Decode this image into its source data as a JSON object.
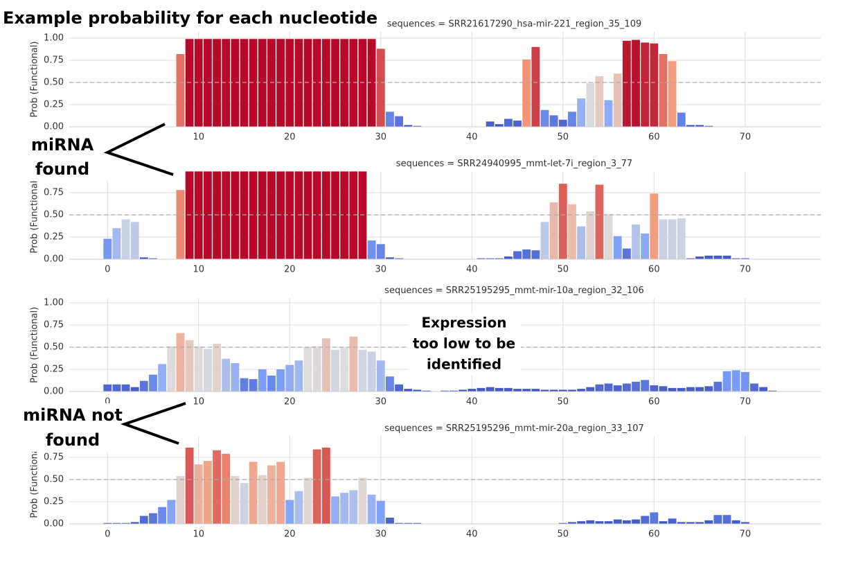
{
  "figure": {
    "title": "Example probability for each nucleotide",
    "annotations": [
      {
        "lines": [
          "miRNA",
          "found"
        ]
      },
      {
        "lines": [
          "Expression",
          "too low to be",
          "identified"
        ]
      },
      {
        "lines": [
          "miRNA not",
          "found"
        ]
      }
    ]
  },
  "chart_data": [
    {
      "type": "bar",
      "title": "sequences = SRR21617290_hsa-mir-221_region_35_109",
      "ylabel": "Prob (Functional)",
      "colormap": "coolwarm",
      "threshold": 0.5,
      "grid": true,
      "xlim": [
        -4.2,
        78.3
      ],
      "xticks": [
        10,
        20,
        30,
        40,
        50,
        60,
        70
      ],
      "ylim": [
        0,
        1.07
      ],
      "yticks": [
        {
          "value": 0,
          "label": "0.00"
        },
        {
          "value": 0.25,
          "label": "0.25"
        },
        {
          "value": 0.5,
          "label": "0.50"
        },
        {
          "value": 0.75,
          "label": "0.75"
        },
        {
          "value": 1,
          "label": "1.00"
        }
      ],
      "x": [
        0,
        1,
        2,
        3,
        4,
        5,
        6,
        7,
        8,
        9,
        10,
        11,
        12,
        13,
        14,
        15,
        16,
        17,
        18,
        19,
        20,
        21,
        22,
        23,
        24,
        25,
        26,
        27,
        28,
        29,
        30,
        31,
        32,
        33,
        34,
        35,
        36,
        37,
        38,
        39,
        40,
        41,
        42,
        43,
        44,
        45,
        46,
        47,
        48,
        49,
        50,
        51,
        52,
        53,
        54,
        55,
        56,
        57,
        58,
        59,
        60,
        61,
        62,
        63,
        64,
        65,
        66,
        67,
        68,
        69,
        70,
        71,
        72,
        73,
        74
      ],
      "values": [
        0,
        0,
        0,
        0,
        0,
        0,
        0,
        0,
        0.82,
        0.99,
        0.99,
        0.99,
        0.99,
        0.99,
        0.99,
        0.99,
        0.99,
        0.99,
        0.99,
        0.99,
        0.99,
        0.99,
        0.99,
        0.99,
        0.99,
        0.99,
        0.99,
        0.99,
        0.99,
        0.99,
        0.88,
        0.17,
        0.12,
        0.02,
        0.01,
        0,
        0,
        0,
        0,
        0,
        0,
        0,
        0.06,
        0.03,
        0.09,
        0.07,
        0.76,
        0.9,
        0.19,
        0.13,
        0.08,
        0.17,
        0.32,
        0.49,
        0.57,
        0.3,
        0.6,
        0.97,
        0.98,
        0.95,
        0.94,
        0.82,
        0.74,
        0.16,
        0.02,
        0.02,
        0.01,
        0,
        0,
        0,
        0,
        0,
        0,
        0,
        0
      ]
    },
    {
      "type": "bar",
      "title": "sequences = SRR24940995_mmt-let-7i_region_3_77",
      "ylabel": "Prob (Functional)",
      "colormap": "coolwarm",
      "threshold": 0.5,
      "grid": true,
      "xlim": [
        -4.2,
        78.3
      ],
      "xticks": [
        0,
        10,
        20,
        30,
        40,
        50,
        60,
        70
      ],
      "ylim": [
        0,
        0.99
      ],
      "yticks": [
        {
          "value": 0,
          "label": "0.00"
        },
        {
          "value": 0.25,
          "label": "0.25"
        },
        {
          "value": 0.5,
          "label": "0.50"
        },
        {
          "value": 0.75,
          "label": "0.75"
        }
      ],
      "x": [
        0,
        1,
        2,
        3,
        4,
        5,
        6,
        7,
        8,
        9,
        10,
        11,
        12,
        13,
        14,
        15,
        16,
        17,
        18,
        19,
        20,
        21,
        22,
        23,
        24,
        25,
        26,
        27,
        28,
        29,
        30,
        31,
        32,
        33,
        34,
        35,
        36,
        37,
        38,
        39,
        40,
        41,
        42,
        43,
        44,
        45,
        46,
        47,
        48,
        49,
        50,
        51,
        52,
        53,
        54,
        55,
        56,
        57,
        58,
        59,
        60,
        61,
        62,
        63,
        64,
        65,
        66,
        67,
        68,
        69,
        70,
        71,
        72,
        73,
        74
      ],
      "values": [
        0.23,
        0.35,
        0.45,
        0.42,
        0.02,
        0.01,
        0,
        0,
        0.78,
        0.99,
        0.99,
        0.99,
        0.99,
        0.99,
        0.99,
        0.99,
        0.99,
        0.99,
        0.99,
        0.99,
        0.99,
        0.99,
        0.99,
        0.99,
        0.99,
        0.99,
        0.99,
        0.99,
        0.99,
        0.21,
        0.17,
        0.02,
        0.01,
        0,
        0,
        0,
        0,
        0,
        0,
        0,
        0,
        0.01,
        0.01,
        0.01,
        0.03,
        0.09,
        0.11,
        0.1,
        0.42,
        0.64,
        0.85,
        0.62,
        0.37,
        0.54,
        0.84,
        0.51,
        0.26,
        0.12,
        0.39,
        0.29,
        0.74,
        0.45,
        0.45,
        0.46,
        0.01,
        0.03,
        0.04,
        0.04,
        0.04,
        0.01,
        0.01,
        0,
        0,
        0,
        0
      ]
    },
    {
      "type": "bar",
      "title": "sequences = SRR25195295_mmt-mir-10a_region_32_106",
      "ylabel": "Prob (Functional)",
      "colormap": "coolwarm",
      "threshold": 0.5,
      "grid": true,
      "xlim": [
        -4.2,
        78.3
      ],
      "xticks": [
        0,
        10,
        20,
        30,
        40,
        50,
        60,
        70
      ],
      "ylim": [
        0,
        1.05
      ],
      "yticks": [
        {
          "value": 0,
          "label": "0.00"
        },
        {
          "value": 0.25,
          "label": "0.25"
        },
        {
          "value": 0.5,
          "label": "0.50"
        },
        {
          "value": 0.75,
          "label": "0.75"
        },
        {
          "value": 1,
          "label": "1.00"
        }
      ],
      "x": [
        0,
        1,
        2,
        3,
        4,
        5,
        6,
        7,
        8,
        9,
        10,
        11,
        12,
        13,
        14,
        15,
        16,
        17,
        18,
        19,
        20,
        21,
        22,
        23,
        24,
        25,
        26,
        27,
        28,
        29,
        30,
        31,
        32,
        33,
        34,
        35,
        36,
        37,
        38,
        39,
        40,
        41,
        42,
        43,
        44,
        45,
        46,
        47,
        48,
        49,
        50,
        51,
        52,
        53,
        54,
        55,
        56,
        57,
        58,
        59,
        60,
        61,
        62,
        63,
        64,
        65,
        66,
        67,
        68,
        69,
        70,
        71,
        72,
        73,
        74
      ],
      "values": [
        0.08,
        0.08,
        0.08,
        0.05,
        0.12,
        0.19,
        0.31,
        0.51,
        0.66,
        0.58,
        0.51,
        0.48,
        0.54,
        0.37,
        0.32,
        0.15,
        0.14,
        0.25,
        0.18,
        0.25,
        0.3,
        0.35,
        0.5,
        0.51,
        0.6,
        0.47,
        0.5,
        0.62,
        0.47,
        0.45,
        0.35,
        0.17,
        0.08,
        0.03,
        0.02,
        0.01,
        0,
        0.01,
        0.01,
        0.02,
        0.03,
        0.04,
        0.05,
        0.04,
        0.04,
        0.03,
        0.03,
        0.03,
        0.02,
        0.02,
        0.02,
        0.02,
        0.03,
        0.05,
        0.08,
        0.09,
        0.07,
        0.09,
        0.11,
        0.13,
        0.07,
        0.06,
        0.04,
        0.04,
        0.05,
        0.05,
        0.06,
        0.11,
        0.23,
        0.24,
        0.22,
        0.09,
        0.05,
        0.01,
        0
      ]
    },
    {
      "type": "bar",
      "title": "sequences = SRR25195296_mmt-mir-20a_region_33_107",
      "ylabel": "Prob (Functional)",
      "colormap": "coolwarm",
      "threshold": 0.5,
      "grid": true,
      "xlim": [
        -4.2,
        78.3
      ],
      "xticks": [
        0,
        10,
        20,
        30,
        40,
        50,
        60,
        70
      ],
      "ylim": [
        0,
        0.99
      ],
      "yticks": [
        {
          "value": 0,
          "label": "0.00"
        },
        {
          "value": 0.25,
          "label": "0.25"
        },
        {
          "value": 0.5,
          "label": "0.50"
        },
        {
          "value": 0.75,
          "label": "0.75"
        }
      ],
      "x": [
        0,
        1,
        2,
        3,
        4,
        5,
        6,
        7,
        8,
        9,
        10,
        11,
        12,
        13,
        14,
        15,
        16,
        17,
        18,
        19,
        20,
        21,
        22,
        23,
        24,
        25,
        26,
        27,
        28,
        29,
        30,
        31,
        32,
        33,
        34,
        35,
        36,
        37,
        38,
        39,
        40,
        41,
        42,
        43,
        44,
        45,
        46,
        47,
        48,
        49,
        50,
        51,
        52,
        53,
        54,
        55,
        56,
        57,
        58,
        59,
        60,
        61,
        62,
        63,
        64,
        65,
        66,
        67,
        68,
        69,
        70,
        71,
        72,
        73,
        74
      ],
      "values": [
        0.01,
        0.01,
        0.01,
        0.02,
        0.09,
        0.12,
        0.19,
        0.27,
        0.54,
        0.86,
        0.67,
        0.71,
        0.83,
        0.79,
        0.54,
        0.46,
        0.7,
        0.55,
        0.66,
        0.7,
        0.27,
        0.37,
        0.52,
        0.84,
        0.86,
        0.31,
        0.35,
        0.38,
        0.52,
        0.33,
        0.26,
        0.07,
        0.01,
        0.01,
        0.01,
        0,
        0,
        0,
        0,
        0,
        0,
        0,
        0,
        0,
        0,
        0,
        0,
        0,
        0,
        0,
        0.01,
        0.02,
        0.03,
        0.04,
        0.03,
        0.03,
        0.05,
        0.04,
        0.05,
        0.09,
        0.13,
        0.03,
        0.06,
        0.02,
        0.02,
        0.02,
        0.04,
        0.1,
        0.1,
        0.04,
        0.02,
        0,
        0,
        0,
        0
      ]
    }
  ]
}
